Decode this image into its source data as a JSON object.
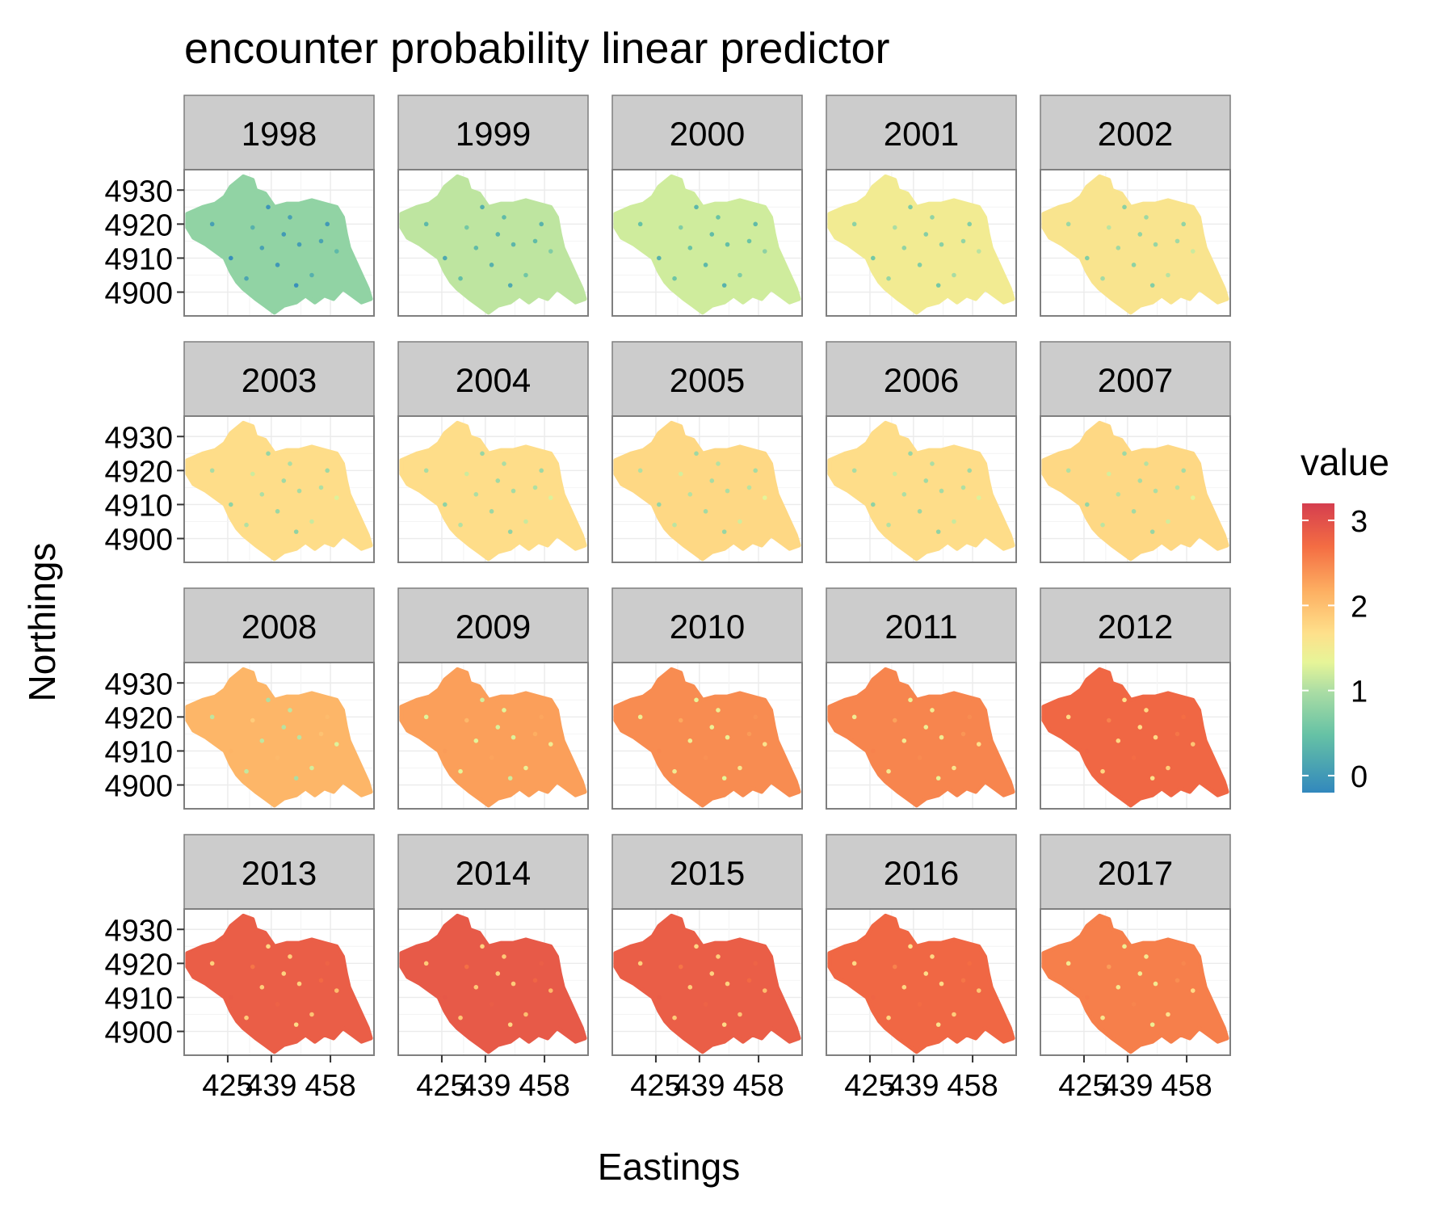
{
  "chart_data": {
    "type": "heatmap",
    "title": "encounter probability linear predictor",
    "xlabel": "Eastings",
    "ylabel": "Northings",
    "legend": {
      "title": "value",
      "position": "right",
      "ticks": [
        "0",
        "1",
        "2",
        "3"
      ],
      "range": [
        -0.2,
        3.2
      ],
      "palette": "Spectral (reversed)"
    },
    "x_ticks": [
      "425",
      "439",
      "458"
    ],
    "x_tick_values": [
      425,
      439,
      458
    ],
    "y_ticks": [
      "4930",
      "4920",
      "4910",
      "4900"
    ],
    "y_tick_values": [
      4930,
      4920,
      4910,
      4900
    ],
    "xlim": [
      411,
      472
    ],
    "ylim": [
      4893,
      4936
    ],
    "grid": true,
    "facets": [
      {
        "year": "1998",
        "mean_value": 0.8
      },
      {
        "year": "1999",
        "mean_value": 1.1
      },
      {
        "year": "2000",
        "mean_value": 1.2
      },
      {
        "year": "2001",
        "mean_value": 1.5
      },
      {
        "year": "2002",
        "mean_value": 1.6
      },
      {
        "year": "2003",
        "mean_value": 1.7
      },
      {
        "year": "2004",
        "mean_value": 1.7
      },
      {
        "year": "2005",
        "mean_value": 1.75
      },
      {
        "year": "2006",
        "mean_value": 1.7
      },
      {
        "year": "2007",
        "mean_value": 1.75
      },
      {
        "year": "2008",
        "mean_value": 2.1
      },
      {
        "year": "2009",
        "mean_value": 2.3
      },
      {
        "year": "2010",
        "mean_value": 2.45
      },
      {
        "year": "2011",
        "mean_value": 2.5
      },
      {
        "year": "2012",
        "mean_value": 2.75
      },
      {
        "year": "2013",
        "mean_value": 2.85
      },
      {
        "year": "2014",
        "mean_value": 2.9
      },
      {
        "year": "2015",
        "mean_value": 2.85
      },
      {
        "year": "2016",
        "mean_value": 2.75
      },
      {
        "year": "2017",
        "mean_value": 2.55
      }
    ]
  }
}
